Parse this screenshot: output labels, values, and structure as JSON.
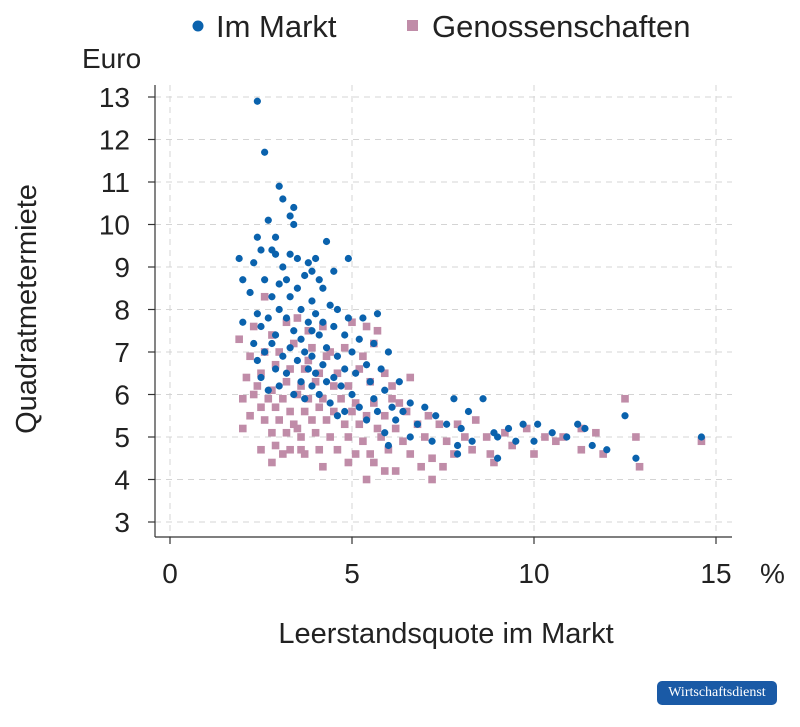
{
  "chart_data": {
    "type": "scatter",
    "title": "",
    "xlabel": "Leerstandsquote im Markt",
    "ylabel": "Quadratmetermiete",
    "x_unit": "%",
    "y_unit": "Euro",
    "xlim": [
      -0.4,
      15.4
    ],
    "ylim": [
      2.6,
      13.3
    ],
    "x_ticks": [
      0,
      5,
      10,
      15
    ],
    "y_ticks": [
      3,
      4,
      5,
      6,
      7,
      8,
      9,
      10,
      11,
      12,
      13
    ],
    "grid": true,
    "legend_position": "top",
    "series": [
      {
        "name": "Im Markt",
        "marker": "circle",
        "color": "#0a62ad",
        "points": [
          [
            2.4,
            12.9
          ],
          [
            2.6,
            11.7
          ],
          [
            3.0,
            10.9
          ],
          [
            3.1,
            10.6
          ],
          [
            2.7,
            10.1
          ],
          [
            3.3,
            10.2
          ],
          [
            3.4,
            10.4
          ],
          [
            3.4,
            10.0
          ],
          [
            2.4,
            9.7
          ],
          [
            2.9,
            9.7
          ],
          [
            4.3,
            9.6
          ],
          [
            2.5,
            9.4
          ],
          [
            2.8,
            9.4
          ],
          [
            2.9,
            9.3
          ],
          [
            3.3,
            9.3
          ],
          [
            3.5,
            9.2
          ],
          [
            3.8,
            9.1
          ],
          [
            4.0,
            9.2
          ],
          [
            4.9,
            9.2
          ],
          [
            1.9,
            9.2
          ],
          [
            2.3,
            9.1
          ],
          [
            3.1,
            9.0
          ],
          [
            3.9,
            8.9
          ],
          [
            4.5,
            8.9
          ],
          [
            2.0,
            8.7
          ],
          [
            2.6,
            8.7
          ],
          [
            3.2,
            8.7
          ],
          [
            3.7,
            8.8
          ],
          [
            4.1,
            8.7
          ],
          [
            3.0,
            8.6
          ],
          [
            3.5,
            8.5
          ],
          [
            4.2,
            8.5
          ],
          [
            2.2,
            8.4
          ],
          [
            2.8,
            8.3
          ],
          [
            3.3,
            8.3
          ],
          [
            3.9,
            8.2
          ],
          [
            4.4,
            8.1
          ],
          [
            3.0,
            8.0
          ],
          [
            3.6,
            8.0
          ],
          [
            4.0,
            7.9
          ],
          [
            4.6,
            8.0
          ],
          [
            2.4,
            7.9
          ],
          [
            2.7,
            7.8
          ],
          [
            3.2,
            7.8
          ],
          [
            3.8,
            7.7
          ],
          [
            4.2,
            7.7
          ],
          [
            4.9,
            7.8
          ],
          [
            5.3,
            7.8
          ],
          [
            5.7,
            7.9
          ],
          [
            2.0,
            7.7
          ],
          [
            2.5,
            7.6
          ],
          [
            3.4,
            7.5
          ],
          [
            3.9,
            7.5
          ],
          [
            4.5,
            7.6
          ],
          [
            2.9,
            7.4
          ],
          [
            3.6,
            7.3
          ],
          [
            4.1,
            7.4
          ],
          [
            4.8,
            7.4
          ],
          [
            5.2,
            7.3
          ],
          [
            2.3,
            7.2
          ],
          [
            2.8,
            7.2
          ],
          [
            3.3,
            7.1
          ],
          [
            3.7,
            7.0
          ],
          [
            4.3,
            7.1
          ],
          [
            5.6,
            7.2
          ],
          [
            2.6,
            7.0
          ],
          [
            3.1,
            6.9
          ],
          [
            3.9,
            6.9
          ],
          [
            4.6,
            6.9
          ],
          [
            5.0,
            7.0
          ],
          [
            6.0,
            7.0
          ],
          [
            2.4,
            6.8
          ],
          [
            3.5,
            6.8
          ],
          [
            4.2,
            6.7
          ],
          [
            5.4,
            6.7
          ],
          [
            2.9,
            6.6
          ],
          [
            3.8,
            6.6
          ],
          [
            4.8,
            6.6
          ],
          [
            5.8,
            6.6
          ],
          [
            3.2,
            6.5
          ],
          [
            4.0,
            6.5
          ],
          [
            4.5,
            6.4
          ],
          [
            5.1,
            6.5
          ],
          [
            2.5,
            6.4
          ],
          [
            3.6,
            6.3
          ],
          [
            4.3,
            6.3
          ],
          [
            5.5,
            6.3
          ],
          [
            6.3,
            6.3
          ],
          [
            3.0,
            6.2
          ],
          [
            3.9,
            6.2
          ],
          [
            4.7,
            6.2
          ],
          [
            5.9,
            6.1
          ],
          [
            2.7,
            6.1
          ],
          [
            3.4,
            6.0
          ],
          [
            4.1,
            6.0
          ],
          [
            5.0,
            6.0
          ],
          [
            5.6,
            5.9
          ],
          [
            6.6,
            5.8
          ],
          [
            3.7,
            5.9
          ],
          [
            4.4,
            5.8
          ],
          [
            5.2,
            5.7
          ],
          [
            6.1,
            5.7
          ],
          [
            7.0,
            5.7
          ],
          [
            4.8,
            5.6
          ],
          [
            5.7,
            5.6
          ],
          [
            6.4,
            5.6
          ],
          [
            7.3,
            5.5
          ],
          [
            8.6,
            5.9
          ],
          [
            7.8,
            5.9
          ],
          [
            8.2,
            5.6
          ],
          [
            4.6,
            5.5
          ],
          [
            5.4,
            5.4
          ],
          [
            6.2,
            5.4
          ],
          [
            6.8,
            5.3
          ],
          [
            7.6,
            5.3
          ],
          [
            8.0,
            5.2
          ],
          [
            8.9,
            5.1
          ],
          [
            9.3,
            5.2
          ],
          [
            9.7,
            5.3
          ],
          [
            10.1,
            5.3
          ],
          [
            10.5,
            5.1
          ],
          [
            10.9,
            5.0
          ],
          [
            11.2,
            5.3
          ],
          [
            11.4,
            5.2
          ],
          [
            12.5,
            5.5
          ],
          [
            5.9,
            5.1
          ],
          [
            6.6,
            5.0
          ],
          [
            7.2,
            4.9
          ],
          [
            7.9,
            4.8
          ],
          [
            8.3,
            4.9
          ],
          [
            9.0,
            5.0
          ],
          [
            9.5,
            4.9
          ],
          [
            10.0,
            4.9
          ],
          [
            11.6,
            4.8
          ],
          [
            9.0,
            4.5
          ],
          [
            12.8,
            4.5
          ],
          [
            14.6,
            5.0
          ],
          [
            12.0,
            4.7
          ],
          [
            7.9,
            4.6
          ],
          [
            6.0,
            4.8
          ]
        ]
      },
      {
        "name": "Genossenschaften",
        "marker": "square",
        "color": "#c08ca8",
        "points": [
          [
            2.6,
            8.3
          ],
          [
            1.9,
            7.3
          ],
          [
            2.3,
            7.6
          ],
          [
            2.8,
            7.4
          ],
          [
            3.2,
            7.7
          ],
          [
            3.5,
            7.8
          ],
          [
            3.8,
            7.5
          ],
          [
            4.2,
            7.6
          ],
          [
            5.0,
            7.7
          ],
          [
            5.4,
            7.6
          ],
          [
            5.7,
            7.5
          ],
          [
            2.2,
            6.9
          ],
          [
            2.6,
            7.0
          ],
          [
            3.0,
            7.0
          ],
          [
            3.4,
            7.2
          ],
          [
            3.9,
            7.1
          ],
          [
            4.4,
            7.0
          ],
          [
            4.8,
            7.1
          ],
          [
            5.6,
            7.2
          ],
          [
            2.1,
            6.4
          ],
          [
            2.5,
            6.5
          ],
          [
            2.9,
            6.7
          ],
          [
            3.3,
            6.6
          ],
          [
            3.7,
            6.6
          ],
          [
            4.1,
            6.5
          ],
          [
            4.6,
            6.5
          ],
          [
            5.2,
            6.6
          ],
          [
            5.9,
            6.5
          ],
          [
            2.4,
            6.2
          ],
          [
            2.8,
            6.1
          ],
          [
            3.2,
            6.3
          ],
          [
            3.6,
            6.2
          ],
          [
            4.0,
            6.3
          ],
          [
            4.5,
            6.2
          ],
          [
            4.9,
            6.2
          ],
          [
            5.5,
            6.3
          ],
          [
            6.1,
            6.2
          ],
          [
            6.6,
            6.4
          ],
          [
            2.0,
            5.9
          ],
          [
            2.3,
            6.0
          ],
          [
            2.7,
            5.9
          ],
          [
            3.1,
            5.9
          ],
          [
            3.5,
            6.0
          ],
          [
            3.8,
            5.9
          ],
          [
            4.2,
            5.9
          ],
          [
            4.7,
            5.9
          ],
          [
            5.1,
            5.8
          ],
          [
            5.6,
            5.8
          ],
          [
            6.3,
            5.8
          ],
          [
            2.5,
            5.7
          ],
          [
            2.9,
            5.7
          ],
          [
            3.3,
            5.6
          ],
          [
            3.7,
            5.6
          ],
          [
            4.1,
            5.7
          ],
          [
            4.5,
            5.6
          ],
          [
            5.0,
            5.6
          ],
          [
            5.4,
            5.5
          ],
          [
            5.9,
            5.5
          ],
          [
            6.5,
            5.6
          ],
          [
            7.1,
            5.5
          ],
          [
            2.2,
            5.5
          ],
          [
            2.6,
            5.4
          ],
          [
            3.0,
            5.4
          ],
          [
            3.4,
            5.3
          ],
          [
            3.9,
            5.4
          ],
          [
            4.3,
            5.4
          ],
          [
            4.8,
            5.3
          ],
          [
            5.2,
            5.3
          ],
          [
            5.7,
            5.2
          ],
          [
            6.2,
            5.2
          ],
          [
            6.8,
            5.3
          ],
          [
            7.4,
            5.3
          ],
          [
            7.9,
            5.3
          ],
          [
            8.4,
            5.4
          ],
          [
            2.8,
            5.1
          ],
          [
            3.2,
            5.1
          ],
          [
            3.6,
            5.0
          ],
          [
            4.0,
            5.1
          ],
          [
            4.4,
            5.0
          ],
          [
            4.9,
            5.0
          ],
          [
            5.3,
            4.9
          ],
          [
            5.8,
            5.0
          ],
          [
            6.4,
            4.9
          ],
          [
            7.0,
            5.0
          ],
          [
            7.6,
            4.9
          ],
          [
            8.1,
            5.0
          ],
          [
            8.7,
            5.0
          ],
          [
            9.2,
            5.1
          ],
          [
            9.8,
            5.2
          ],
          [
            10.3,
            5.0
          ],
          [
            10.8,
            5.0
          ],
          [
            11.3,
            5.2
          ],
          [
            11.7,
            5.1
          ],
          [
            12.5,
            5.9
          ],
          [
            12.8,
            5.0
          ],
          [
            14.6,
            4.9
          ],
          [
            2.5,
            4.7
          ],
          [
            2.9,
            4.8
          ],
          [
            3.3,
            4.7
          ],
          [
            3.7,
            4.6
          ],
          [
            4.1,
            4.7
          ],
          [
            4.6,
            4.7
          ],
          [
            5.1,
            4.6
          ],
          [
            5.5,
            4.6
          ],
          [
            6.0,
            4.7
          ],
          [
            6.6,
            4.6
          ],
          [
            7.2,
            4.5
          ],
          [
            7.8,
            4.6
          ],
          [
            8.3,
            4.7
          ],
          [
            8.8,
            4.6
          ],
          [
            9.4,
            4.8
          ],
          [
            10.0,
            4.6
          ],
          [
            10.6,
            4.9
          ],
          [
            11.3,
            4.7
          ],
          [
            11.9,
            4.6
          ],
          [
            12.9,
            4.3
          ],
          [
            2.8,
            4.4
          ],
          [
            3.1,
            4.6
          ],
          [
            3.6,
            4.7
          ],
          [
            4.2,
            4.3
          ],
          [
            4.9,
            4.4
          ],
          [
            5.6,
            4.4
          ],
          [
            6.2,
            4.2
          ],
          [
            6.9,
            4.3
          ],
          [
            5.4,
            4.0
          ],
          [
            5.9,
            4.2
          ],
          [
            7.2,
            4.0
          ],
          [
            7.5,
            4.3
          ],
          [
            8.9,
            4.4
          ],
          [
            3.8,
            6.8
          ],
          [
            4.3,
            6.9
          ],
          [
            5.3,
            6.9
          ],
          [
            2.0,
            5.2
          ],
          [
            3.5,
            5.2
          ],
          [
            6.1,
            5.9
          ]
        ]
      }
    ]
  },
  "legend": {
    "items": [
      {
        "label": "Im Markt",
        "marker": "circle"
      },
      {
        "label": "Genossenschaften",
        "marker": "square"
      }
    ]
  },
  "badge": {
    "label": "Wirtschaftsdienst"
  }
}
